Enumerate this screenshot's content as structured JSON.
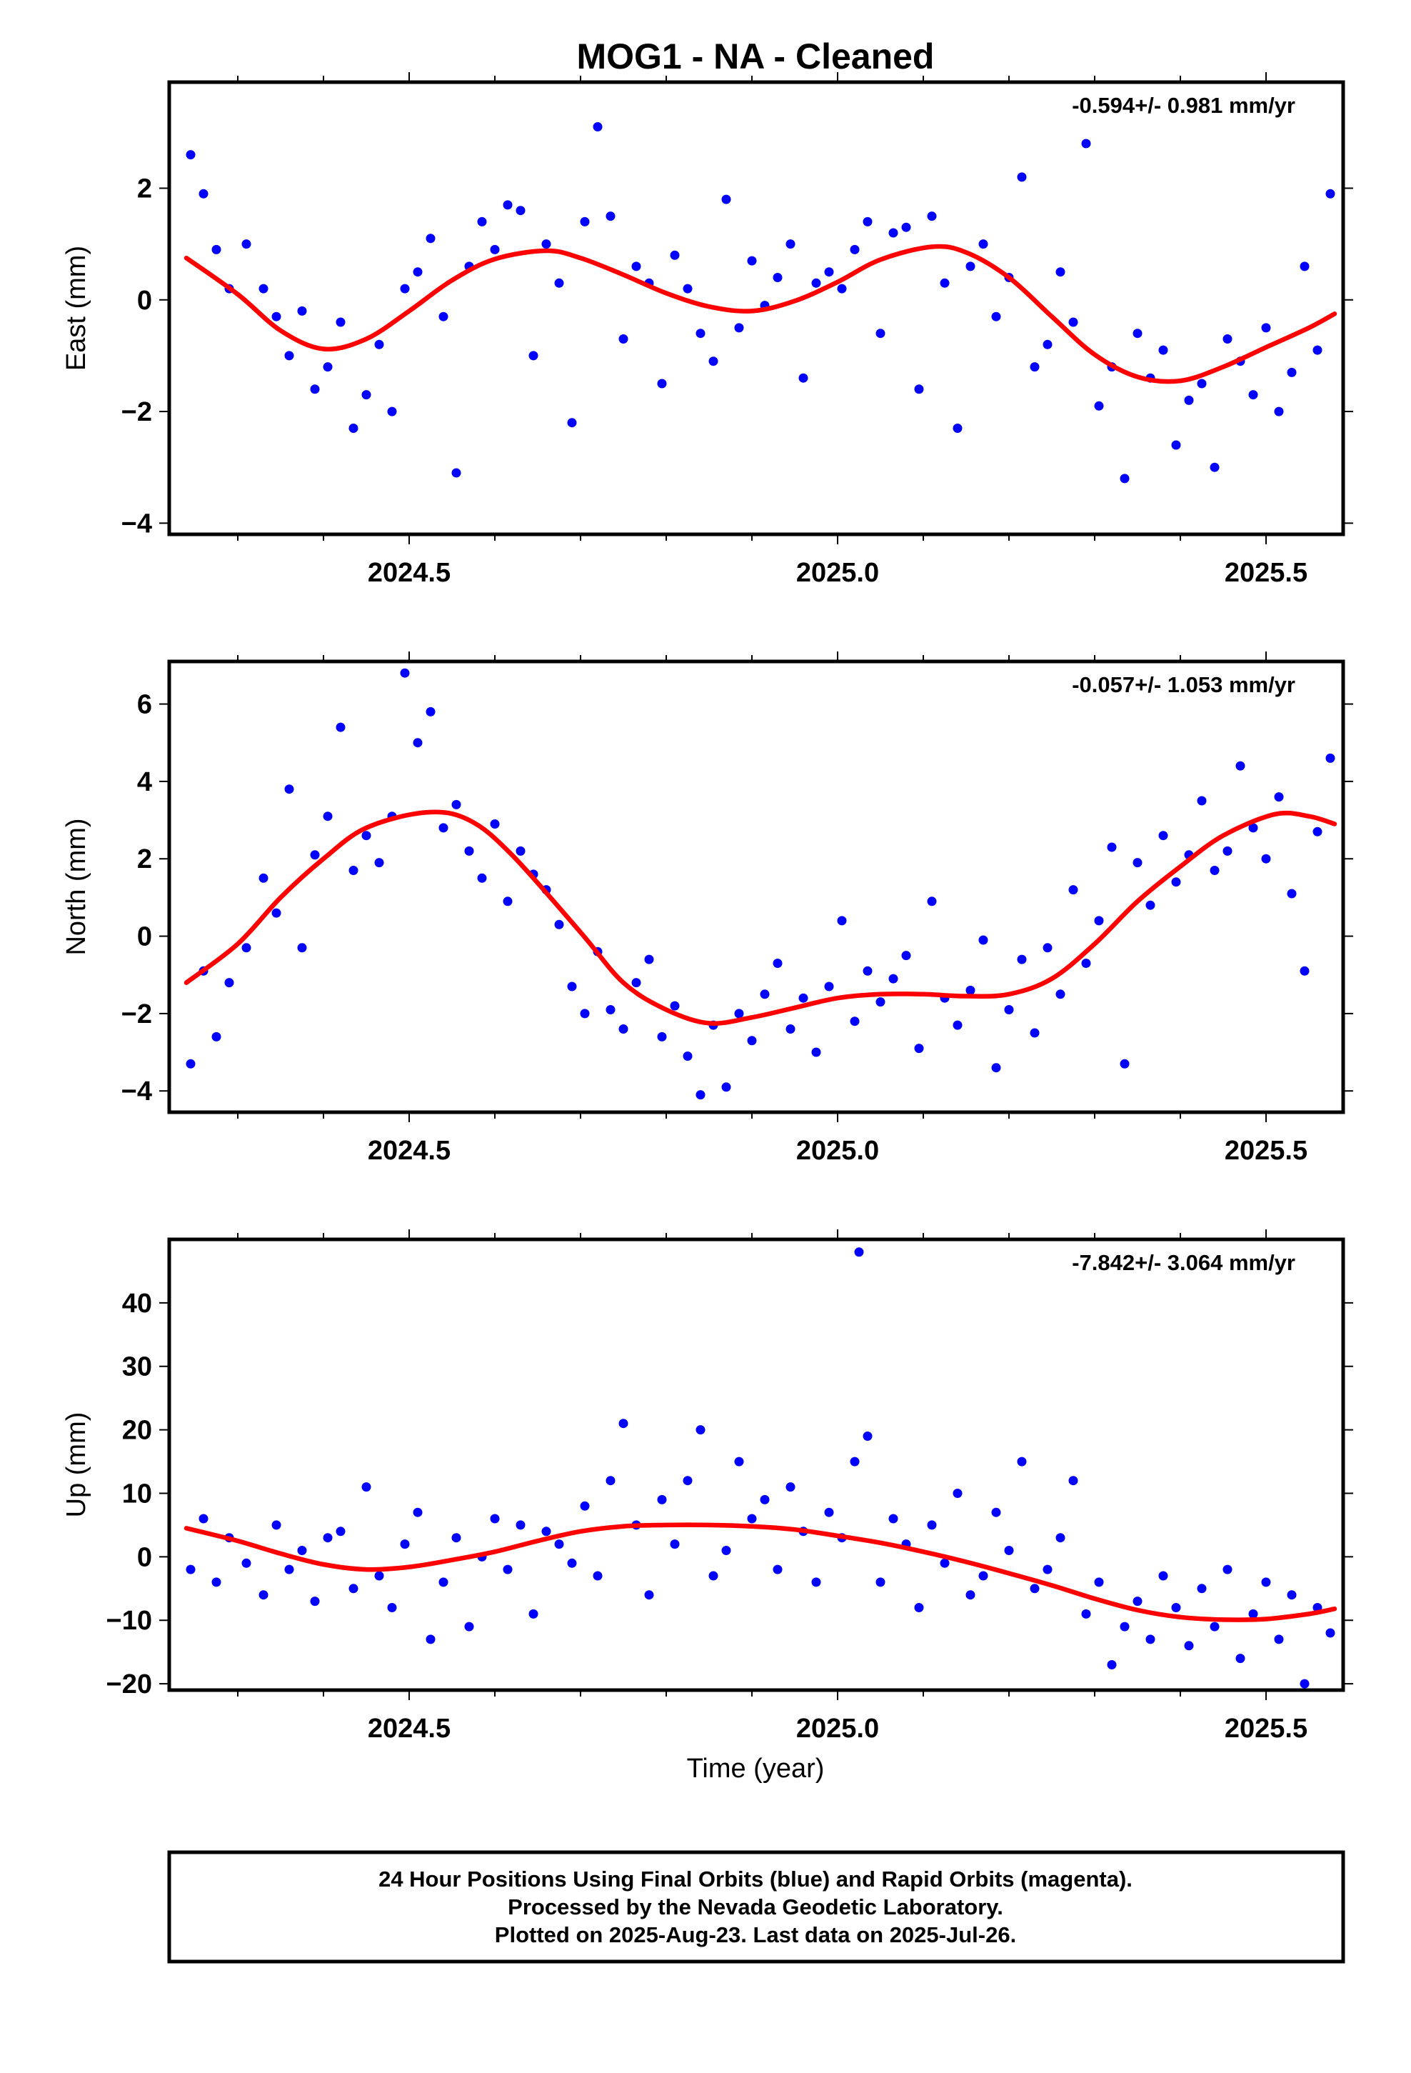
{
  "title": "MOG1  - NA - Cleaned",
  "colors": {
    "points": "#0000ff",
    "fit": "#ff0000",
    "frame": "#000000"
  },
  "xlabel": "Time (year)",
  "footer": {
    "line1": "24 Hour Positions Using Final Orbits (blue) and Rapid Orbits (magenta).",
    "line2": "Processed by the Nevada Geodetic Laboratory.",
    "line3": "Plotted on 2025-Aug-23. Last data on 2025-Jul-26."
  },
  "chart_data": [
    {
      "type": "scatter",
      "ylabel": "East (mm)",
      "rate_text": "-0.594+/- 0.981 mm/yr",
      "xlim": [
        2024.22,
        2025.59
      ],
      "ylim": [
        -4.2,
        3.9
      ],
      "x_ticks": [
        2024.5,
        2025.0,
        2025.5
      ],
      "x_tick_labels": [
        "2024.5",
        "2025.0",
        "2025.5"
      ],
      "y_ticks": [
        -4,
        -2,
        0,
        2
      ],
      "y_tick_labels": [
        "−4",
        "−2",
        "0",
        "2"
      ],
      "series": [
        {
          "x": [
            2024.245,
            2024.26,
            2024.275,
            2024.29,
            2024.31,
            2024.33,
            2024.345,
            2024.36,
            2024.375,
            2024.39,
            2024.405,
            2024.42,
            2024.435,
            2024.45,
            2024.465,
            2024.48,
            2024.495,
            2024.51,
            2024.525,
            2024.54,
            2024.555,
            2024.57,
            2024.585,
            2024.6,
            2024.615,
            2024.63,
            2024.645,
            2024.66,
            2024.675,
            2024.69,
            2024.705,
            2024.72,
            2024.735,
            2024.75,
            2024.765,
            2024.78,
            2024.795,
            2024.81,
            2024.825,
            2024.84,
            2024.855,
            2024.87,
            2024.885,
            2024.9,
            2024.915,
            2024.93,
            2024.945,
            2024.96,
            2024.975,
            2024.99,
            2025.005,
            2025.02,
            2025.035,
            2025.05,
            2025.065,
            2025.08,
            2025.095,
            2025.11,
            2025.125,
            2025.14,
            2025.155,
            2025.17,
            2025.185,
            2025.2,
            2025.215,
            2025.23,
            2025.245,
            2025.26,
            2025.275,
            2025.29,
            2025.305,
            2025.32,
            2025.335,
            2025.35,
            2025.365,
            2025.38,
            2025.395,
            2025.41,
            2025.425,
            2025.44,
            2025.455,
            2025.47,
            2025.485,
            2025.5,
            2025.515,
            2025.53,
            2025.545,
            2025.56,
            2025.575
          ],
          "y": [
            2.6,
            1.9,
            0.9,
            0.2,
            1.0,
            0.2,
            -0.3,
            -1.0,
            -0.2,
            -1.6,
            -1.2,
            -0.4,
            -2.3,
            -1.7,
            -0.8,
            -2.0,
            0.2,
            0.5,
            1.1,
            -0.3,
            -3.1,
            0.6,
            1.4,
            0.9,
            1.7,
            1.6,
            -1.0,
            1.0,
            0.3,
            -2.2,
            1.4,
            3.1,
            1.5,
            -0.7,
            0.6,
            0.3,
            -1.5,
            0.8,
            0.2,
            -0.6,
            -1.1,
            1.8,
            -0.5,
            0.7,
            -0.1,
            0.4,
            1.0,
            -1.4,
            0.3,
            0.5,
            0.2,
            0.9,
            1.4,
            -0.6,
            1.2,
            1.3,
            -1.6,
            1.5,
            0.3,
            -2.3,
            0.6,
            1.0,
            -0.3,
            0.4,
            2.2,
            -1.2,
            -0.8,
            0.5,
            -0.4,
            2.8,
            -1.9,
            -1.2,
            -3.2,
            -0.6,
            -1.4,
            -0.9,
            -2.6,
            -1.8,
            -1.5,
            -3.0,
            -0.7,
            -1.1,
            -1.7,
            -0.5,
            -2.0,
            -1.3,
            0.6,
            -0.9,
            1.9
          ]
        }
      ],
      "fit": {
        "x": [
          2024.24,
          2024.3,
          2024.35,
          2024.4,
          2024.45,
          2024.5,
          2024.55,
          2024.6,
          2024.66,
          2024.7,
          2024.75,
          2024.8,
          2024.85,
          2024.9,
          2024.95,
          2025.0,
          2025.05,
          2025.11,
          2025.15,
          2025.2,
          2025.25,
          2025.3,
          2025.35,
          2025.4,
          2025.45,
          2025.5,
          2025.55,
          2025.58
        ],
        "y": [
          0.75,
          0.1,
          -0.55,
          -0.88,
          -0.7,
          -0.2,
          0.35,
          0.73,
          0.88,
          0.75,
          0.45,
          0.12,
          -0.12,
          -0.2,
          -0.02,
          0.32,
          0.72,
          0.95,
          0.85,
          0.4,
          -0.3,
          -0.98,
          -1.38,
          -1.45,
          -1.2,
          -0.85,
          -0.5,
          -0.25
        ]
      }
    },
    {
      "type": "scatter",
      "ylabel": "North (mm)",
      "rate_text": "-0.057+/- 1.053 mm/yr",
      "xlim": [
        2024.22,
        2025.59
      ],
      "ylim": [
        -4.55,
        7.1
      ],
      "x_ticks": [
        2024.5,
        2025.0,
        2025.5
      ],
      "x_tick_labels": [
        "2024.5",
        "2025.0",
        "2025.5"
      ],
      "y_ticks": [
        -4,
        -2,
        0,
        2,
        4,
        6
      ],
      "y_tick_labels": [
        "−4",
        "−2",
        "0",
        "2",
        "4",
        "6"
      ],
      "series": [
        {
          "x": [
            2024.245,
            2024.26,
            2024.275,
            2024.29,
            2024.31,
            2024.33,
            2024.345,
            2024.36,
            2024.375,
            2024.39,
            2024.405,
            2024.42,
            2024.435,
            2024.45,
            2024.465,
            2024.48,
            2024.495,
            2024.51,
            2024.525,
            2024.54,
            2024.555,
            2024.57,
            2024.585,
            2024.6,
            2024.615,
            2024.63,
            2024.645,
            2024.66,
            2024.675,
            2024.69,
            2024.705,
            2024.72,
            2024.735,
            2024.75,
            2024.765,
            2024.78,
            2024.795,
            2024.81,
            2024.825,
            2024.84,
            2024.855,
            2024.87,
            2024.885,
            2024.9,
            2024.915,
            2024.93,
            2024.945,
            2024.96,
            2024.975,
            2024.99,
            2025.005,
            2025.02,
            2025.035,
            2025.05,
            2025.065,
            2025.08,
            2025.095,
            2025.11,
            2025.125,
            2025.14,
            2025.155,
            2025.17,
            2025.185,
            2025.2,
            2025.215,
            2025.23,
            2025.245,
            2025.26,
            2025.275,
            2025.29,
            2025.305,
            2025.32,
            2025.335,
            2025.35,
            2025.365,
            2025.38,
            2025.395,
            2025.41,
            2025.425,
            2025.44,
            2025.455,
            2025.47,
            2025.485,
            2025.5,
            2025.515,
            2025.53,
            2025.545,
            2025.56,
            2025.575
          ],
          "y": [
            -3.3,
            -0.9,
            -2.6,
            -1.2,
            -0.3,
            1.5,
            0.6,
            3.8,
            -0.3,
            2.1,
            3.1,
            5.4,
            1.7,
            2.6,
            1.9,
            3.1,
            6.8,
            5.0,
            5.8,
            2.8,
            3.4,
            2.2,
            1.5,
            2.9,
            0.9,
            2.2,
            1.6,
            1.2,
            0.3,
            -1.3,
            -2.0,
            -0.4,
            -1.9,
            -2.4,
            -1.2,
            -0.6,
            -2.6,
            -1.8,
            -3.1,
            -4.1,
            -2.3,
            -3.9,
            -2.0,
            -2.7,
            -1.5,
            -0.7,
            -2.4,
            -1.6,
            -3.0,
            -1.3,
            0.4,
            -2.2,
            -0.9,
            -1.7,
            -1.1,
            -0.5,
            -2.9,
            0.9,
            -1.6,
            -2.3,
            -1.4,
            -0.1,
            -3.4,
            -1.9,
            -0.6,
            -2.5,
            -0.3,
            -1.5,
            1.2,
            -0.7,
            0.4,
            2.3,
            -3.3,
            1.9,
            0.8,
            2.6,
            1.4,
            2.1,
            3.5,
            1.7,
            2.2,
            4.4,
            2.8,
            2.0,
            3.6,
            1.1,
            -0.9,
            2.7,
            4.6
          ]
        }
      ],
      "fit": {
        "x": [
          2024.24,
          2024.3,
          2024.35,
          2024.4,
          2024.45,
          2024.52,
          2024.57,
          2024.62,
          2024.7,
          2024.75,
          2024.8,
          2024.85,
          2024.9,
          2024.95,
          2025.0,
          2025.05,
          2025.1,
          2025.15,
          2025.2,
          2025.25,
          2025.3,
          2025.35,
          2025.4,
          2025.45,
          2025.51,
          2025.55,
          2025.58
        ],
        "y": [
          -1.2,
          -0.2,
          1.0,
          2.0,
          2.8,
          3.2,
          3.0,
          2.1,
          0.1,
          -1.2,
          -1.9,
          -2.25,
          -2.1,
          -1.85,
          -1.6,
          -1.5,
          -1.5,
          -1.55,
          -1.5,
          -1.1,
          -0.2,
          0.9,
          1.8,
          2.6,
          3.15,
          3.1,
          2.9
        ]
      }
    },
    {
      "type": "scatter",
      "ylabel": "Up (mm)",
      "rate_text": "-7.842+/- 3.064 mm/yr",
      "xlim": [
        2024.22,
        2025.59
      ],
      "ylim": [
        -21,
        50
      ],
      "x_ticks": [
        2024.5,
        2025.0,
        2025.5
      ],
      "x_tick_labels": [
        "2024.5",
        "2025.0",
        "2025.5"
      ],
      "y_ticks": [
        -20,
        -10,
        0,
        10,
        20,
        30,
        40
      ],
      "y_tick_labels": [
        "−20",
        "−10",
        "0",
        "10",
        "20",
        "30",
        "40"
      ],
      "series": [
        {
          "x": [
            2024.245,
            2024.26,
            2024.275,
            2024.29,
            2024.31,
            2024.33,
            2024.345,
            2024.36,
            2024.375,
            2024.39,
            2024.405,
            2024.42,
            2024.435,
            2024.45,
            2024.465,
            2024.48,
            2024.495,
            2024.51,
            2024.525,
            2024.54,
            2024.555,
            2024.57,
            2024.585,
            2024.6,
            2024.615,
            2024.63,
            2024.645,
            2024.66,
            2024.675,
            2024.69,
            2024.705,
            2024.72,
            2024.735,
            2024.75,
            2024.765,
            2024.78,
            2024.795,
            2024.81,
            2024.825,
            2024.84,
            2024.855,
            2024.87,
            2024.885,
            2024.9,
            2024.915,
            2024.93,
            2024.945,
            2024.96,
            2024.975,
            2024.99,
            2025.005,
            2025.02,
            2025.035,
            2025.05,
            2025.065,
            2025.08,
            2025.095,
            2025.11,
            2025.125,
            2025.14,
            2025.155,
            2025.17,
            2025.185,
            2025.2,
            2025.215,
            2025.23,
            2025.245,
            2025.26,
            2025.275,
            2025.29,
            2025.305,
            2025.32,
            2025.335,
            2025.35,
            2025.365,
            2025.38,
            2025.395,
            2025.41,
            2025.425,
            2025.44,
            2025.455,
            2025.47,
            2025.485,
            2025.5,
            2025.515,
            2025.53,
            2025.545,
            2025.56,
            2025.575
          ],
          "y": [
            -2,
            6,
            -4,
            3,
            -1,
            -6,
            5,
            -2,
            1,
            -7,
            3,
            4,
            -5,
            11,
            -3,
            -8,
            2,
            7,
            -13,
            -4,
            3,
            -11,
            0,
            6,
            -2,
            5,
            -9,
            4,
            2,
            -1,
            8,
            -3,
            12,
            21,
            5,
            -6,
            9,
            2,
            12,
            20,
            -3,
            1,
            15,
            6,
            9,
            -2,
            11,
            4,
            -4,
            7,
            3,
            15,
            19,
            -4,
            6,
            2,
            -8,
            5,
            -1,
            10,
            -6,
            -3,
            7,
            1,
            15,
            -5,
            -2,
            3,
            12,
            -9,
            -4,
            -17,
            -11,
            -7,
            -13,
            -3,
            -8,
            -14,
            -5,
            -11,
            -2,
            -16,
            -9,
            -4,
            -13,
            -6,
            -20,
            -8,
            -12
          ]
        },
        {
          "x": [
            2025.025
          ],
          "y": [
            48
          ]
        }
      ],
      "fit": {
        "x": [
          2024.24,
          2024.3,
          2024.35,
          2024.4,
          2024.45,
          2024.5,
          2024.55,
          2024.6,
          2024.65,
          2024.7,
          2024.75,
          2024.8,
          2024.85,
          2024.9,
          2024.95,
          2025.0,
          2025.05,
          2025.1,
          2025.15,
          2025.2,
          2025.25,
          2025.3,
          2025.35,
          2025.4,
          2025.45,
          2025.5,
          2025.55,
          2025.58
        ],
        "y": [
          4.5,
          2.5,
          0.5,
          -1.2,
          -2.0,
          -1.6,
          -0.5,
          0.8,
          2.5,
          4.0,
          4.8,
          5.0,
          5.0,
          4.8,
          4.3,
          3.3,
          2.2,
          0.8,
          -0.8,
          -2.6,
          -4.5,
          -6.6,
          -8.4,
          -9.5,
          -9.9,
          -9.8,
          -9.0,
          -8.2
        ]
      }
    }
  ]
}
